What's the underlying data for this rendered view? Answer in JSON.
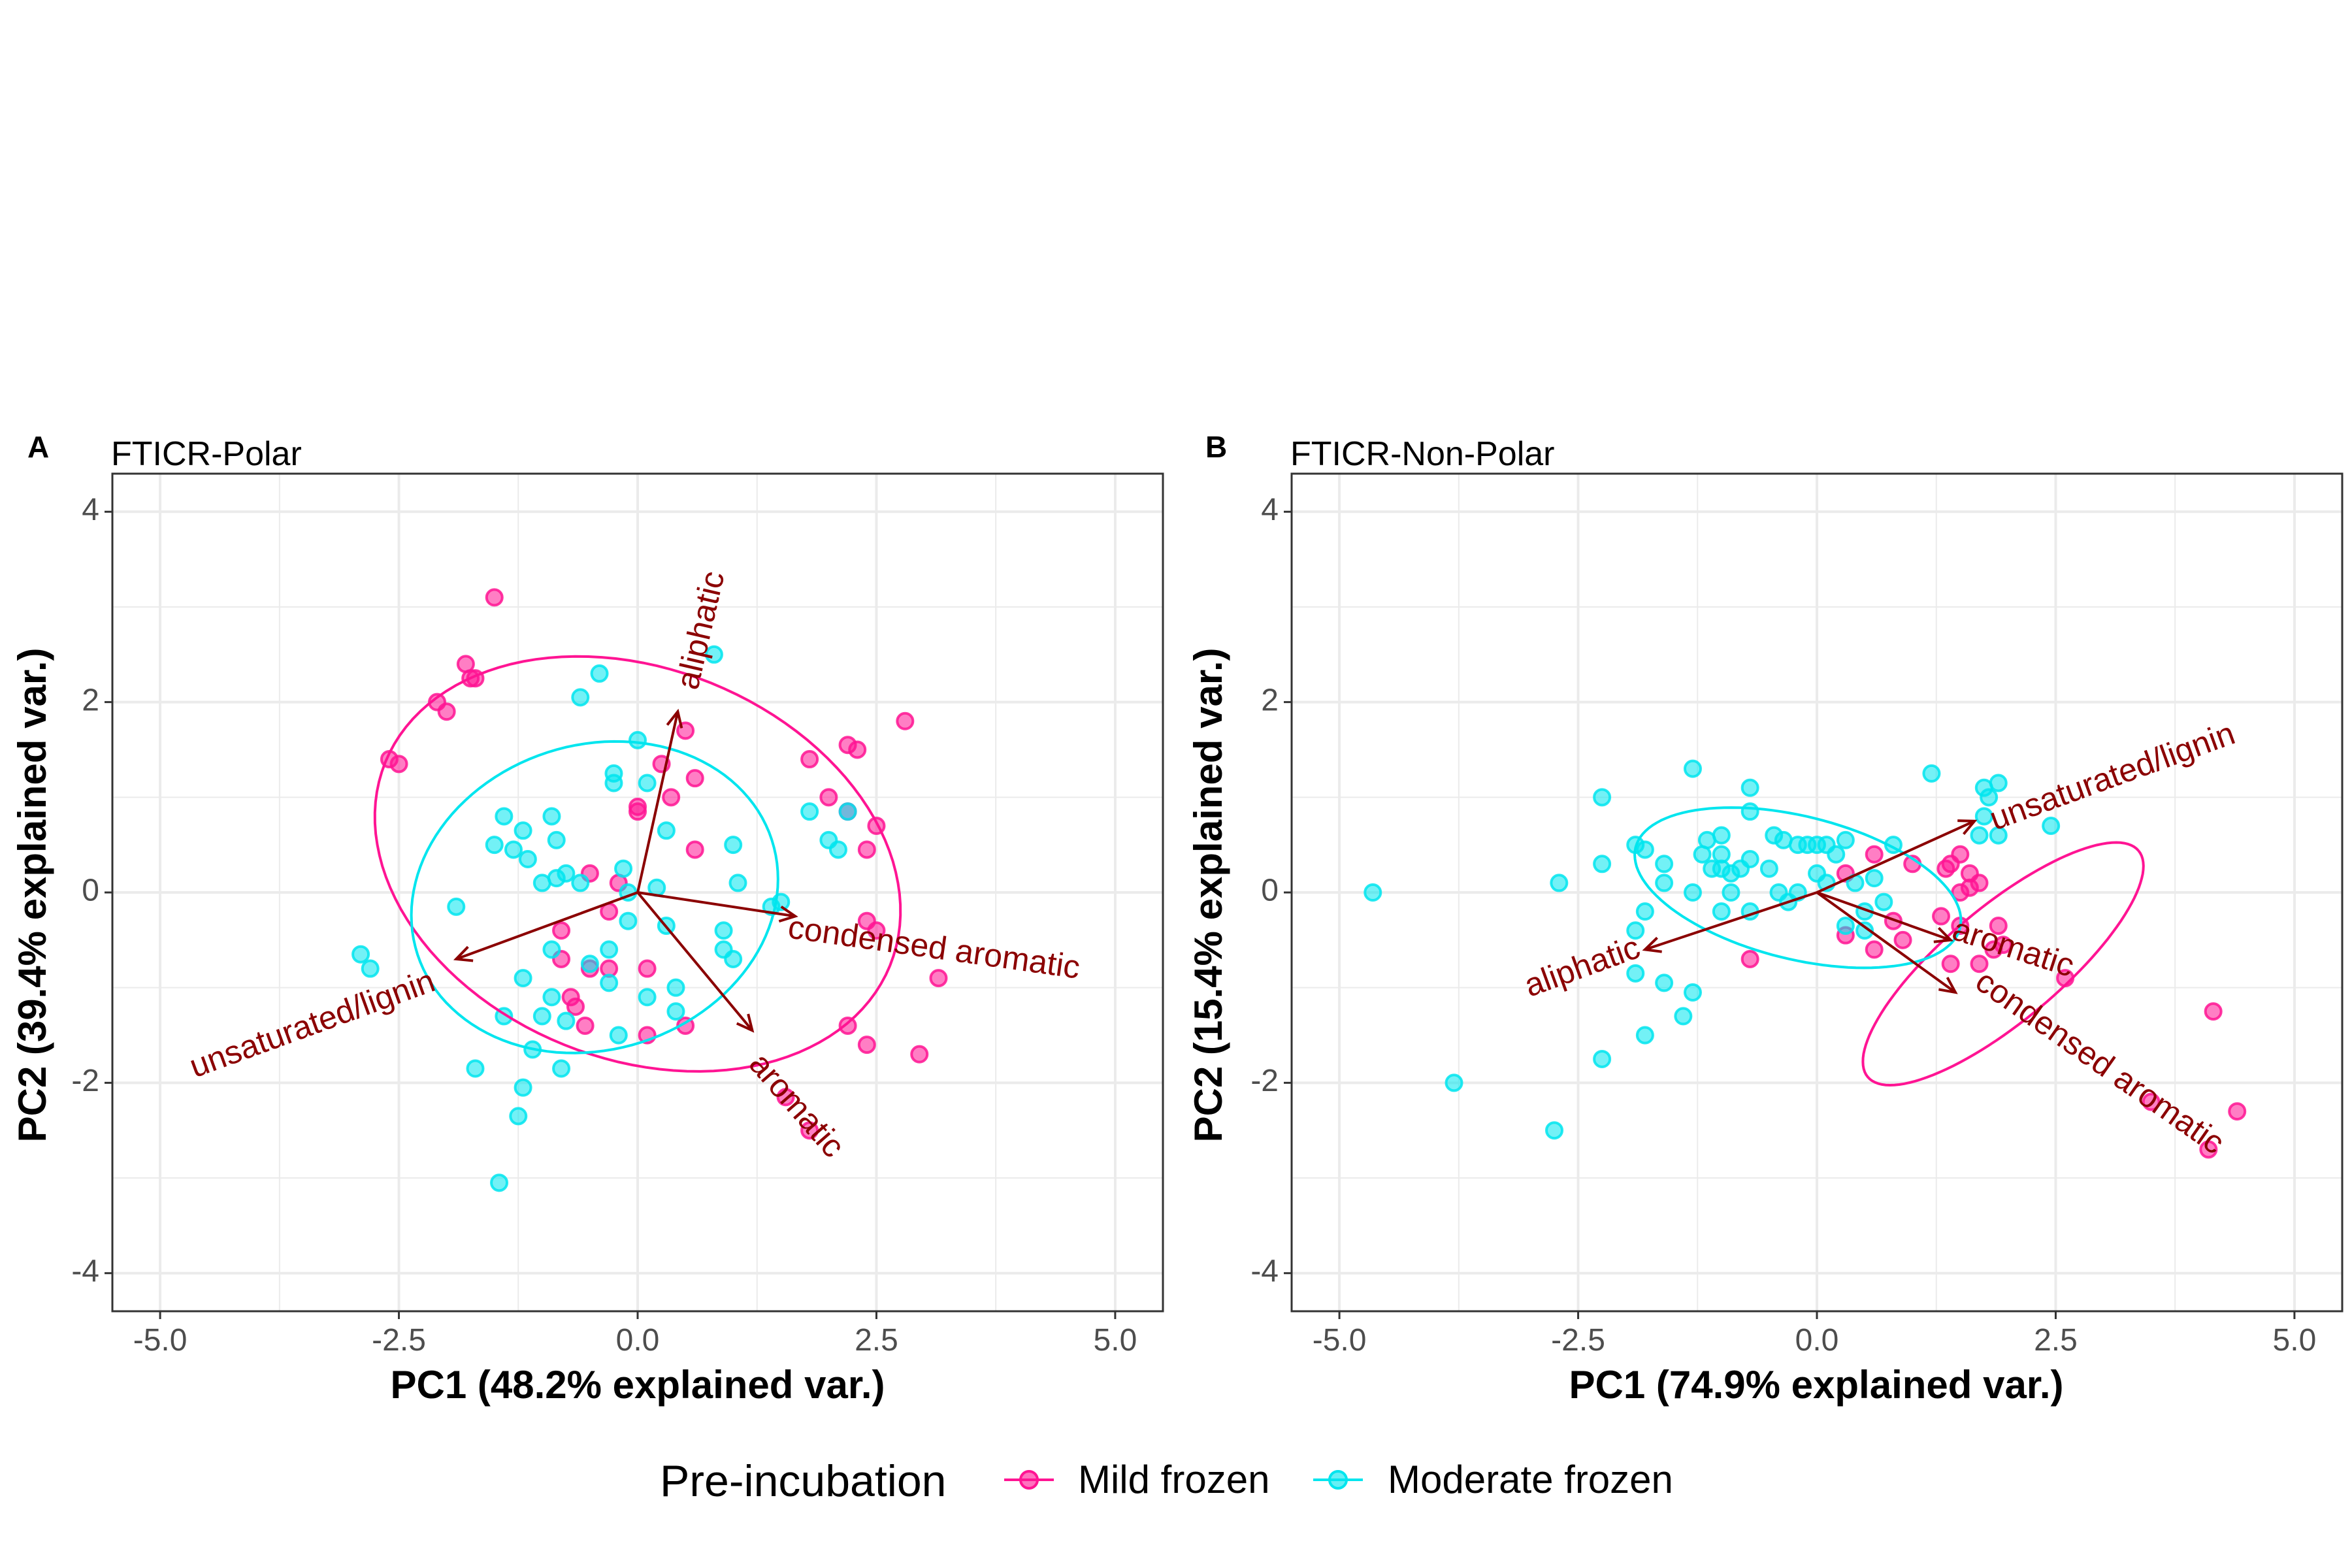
{
  "colors": {
    "mild": "#FF1493",
    "moderate": "#00E5EE",
    "arrow": "#8B0000",
    "grid": "#EBEBEB",
    "border": "#333333"
  },
  "legend": {
    "title": "Pre-incubation",
    "items": [
      {
        "label": "Mild frozen",
        "color": "#FF1493"
      },
      {
        "label": "Moderate frozen",
        "color": "#00E5EE"
      }
    ]
  },
  "chart_data": [
    {
      "type": "scatter",
      "panel": "A",
      "subtitle": "FTICR-Polar",
      "xlabel": "PC1 (48.2% explained var.)",
      "ylabel": "PC2 (39.4% explained var.)",
      "xlim": [
        -5.5,
        5.5
      ],
      "ylim": [
        -4.4,
        4.4
      ],
      "xticks": [
        -5.0,
        -2.5,
        0.0,
        2.5,
        5.0
      ],
      "xtick_labels": [
        "-5.0",
        "-2.5",
        "0.0",
        "2.5",
        "5.0"
      ],
      "yticks": [
        -4,
        -2,
        0,
        2,
        4
      ],
      "ytick_labels": [
        "-4",
        "-2",
        "0",
        "2",
        "4"
      ],
      "grid": true,
      "series": [
        {
          "name": "Mild frozen",
          "color": "#FF1493",
          "points": [
            [
              -1.5,
              3.1
            ],
            [
              -1.8,
              2.4
            ],
            [
              -1.75,
              2.25
            ],
            [
              -1.7,
              2.25
            ],
            [
              -2.1,
              2.0
            ],
            [
              -2.0,
              1.9
            ],
            [
              -2.6,
              1.4
            ],
            [
              -2.5,
              1.35
            ],
            [
              0.5,
              1.7
            ],
            [
              0.25,
              1.35
            ],
            [
              0.6,
              1.2
            ],
            [
              0.35,
              1.0
            ],
            [
              0.0,
              0.85
            ],
            [
              0.0,
              0.9
            ],
            [
              2.8,
              1.8
            ],
            [
              2.2,
              1.55
            ],
            [
              2.3,
              1.5
            ],
            [
              1.8,
              1.4
            ],
            [
              2.0,
              1.0
            ],
            [
              2.2,
              0.85
            ],
            [
              2.5,
              0.7
            ],
            [
              2.4,
              0.45
            ],
            [
              0.6,
              0.45
            ],
            [
              -0.5,
              0.2
            ],
            [
              -0.2,
              0.1
            ],
            [
              -0.3,
              -0.2
            ],
            [
              -0.8,
              -0.4
            ],
            [
              -0.8,
              -0.7
            ],
            [
              -0.5,
              -0.8
            ],
            [
              -0.3,
              -0.8
            ],
            [
              0.1,
              -0.8
            ],
            [
              -0.7,
              -1.1
            ],
            [
              -0.65,
              -1.2
            ],
            [
              -0.55,
              -1.4
            ],
            [
              0.1,
              -1.5
            ],
            [
              0.5,
              -1.4
            ],
            [
              2.4,
              -0.3
            ],
            [
              2.5,
              -0.4
            ],
            [
              3.15,
              -0.9
            ],
            [
              2.2,
              -1.4
            ],
            [
              2.4,
              -1.6
            ],
            [
              2.95,
              -1.7
            ],
            [
              1.55,
              -2.15
            ],
            [
              1.8,
              -2.5
            ]
          ],
          "ellipse": {
            "cx": 0.0,
            "cy": 0.3,
            "rx": 2.85,
            "ry": 2.05,
            "angle_deg": -22
          }
        },
        {
          "name": "Moderate frozen",
          "color": "#00E5EE",
          "points": [
            [
              -0.4,
              2.3
            ],
            [
              -0.6,
              2.05
            ],
            [
              0.8,
              2.5
            ],
            [
              -0.25,
              1.25
            ],
            [
              -0.25,
              1.15
            ],
            [
              0.0,
              1.6
            ],
            [
              0.1,
              1.15
            ],
            [
              -1.4,
              0.8
            ],
            [
              -1.2,
              0.65
            ],
            [
              -0.9,
              0.8
            ],
            [
              -1.3,
              0.45
            ],
            [
              -1.5,
              0.5
            ],
            [
              -1.15,
              0.35
            ],
            [
              -0.85,
              0.55
            ],
            [
              -0.75,
              0.2
            ],
            [
              -0.85,
              0.15
            ],
            [
              -0.6,
              0.1
            ],
            [
              -1.0,
              0.1
            ],
            [
              -0.15,
              0.25
            ],
            [
              -0.1,
              0.0
            ],
            [
              0.3,
              0.65
            ],
            [
              1.0,
              0.5
            ],
            [
              0.2,
              0.05
            ],
            [
              1.05,
              0.1
            ],
            [
              1.8,
              0.85
            ],
            [
              2.0,
              0.55
            ],
            [
              2.2,
              0.85
            ],
            [
              2.1,
              0.45
            ],
            [
              1.4,
              -0.15
            ],
            [
              1.5,
              -0.1
            ],
            [
              0.9,
              -0.4
            ],
            [
              -1.9,
              -0.15
            ],
            [
              -2.9,
              -0.65
            ],
            [
              -2.8,
              -0.8
            ],
            [
              -0.1,
              -0.3
            ],
            [
              0.3,
              -0.35
            ],
            [
              0.9,
              -0.6
            ],
            [
              1.0,
              -0.7
            ],
            [
              -0.3,
              -0.6
            ],
            [
              -0.5,
              -0.75
            ],
            [
              -0.9,
              -0.6
            ],
            [
              -0.9,
              -1.1
            ],
            [
              -1.2,
              -0.9
            ],
            [
              -1.0,
              -1.3
            ],
            [
              -0.75,
              -1.35
            ],
            [
              -1.4,
              -1.3
            ],
            [
              -0.3,
              -0.95
            ],
            [
              0.1,
              -1.1
            ],
            [
              0.4,
              -1.0
            ],
            [
              0.4,
              -1.25
            ],
            [
              -0.2,
              -1.5
            ],
            [
              -1.1,
              -1.65
            ],
            [
              -1.7,
              -1.85
            ],
            [
              -1.2,
              -2.05
            ],
            [
              -1.25,
              -2.35
            ],
            [
              -0.8,
              -1.85
            ],
            [
              -1.45,
              -3.05
            ]
          ],
          "ellipse": {
            "cx": -0.45,
            "cy": -0.05,
            "rx": 1.95,
            "ry": 1.6,
            "angle_deg": 18
          }
        }
      ],
      "loadings": [
        {
          "label": "aliphatic",
          "x": 0.42,
          "y": 1.9,
          "label_x": 0.68,
          "label_y": 2.75,
          "rotate_deg": -77
        },
        {
          "label": "condensed aromatic",
          "x": 1.65,
          "y": -0.25,
          "label_x": 3.1,
          "label_y": -0.6,
          "rotate_deg": 8
        },
        {
          "label": "aromatic",
          "x": 1.2,
          "y": -1.45,
          "label_x": 1.65,
          "label_y": -2.25,
          "rotate_deg": 49
        },
        {
          "label": "unsaturated/lignin",
          "x": -1.9,
          "y": -0.7,
          "label_x": -3.4,
          "label_y": -1.4,
          "rotate_deg": -20
        }
      ]
    },
    {
      "type": "scatter",
      "panel": "B",
      "subtitle": "FTICR-Non-Polar",
      "xlabel": "PC1 (74.9% explained var.)",
      "ylabel": "PC2 (15.4% explained var.)",
      "xlim": [
        -5.5,
        5.5
      ],
      "ylim": [
        -4.4,
        4.4
      ],
      "xticks": [
        -5.0,
        -2.5,
        0.0,
        2.5,
        5.0
      ],
      "xtick_labels": [
        "-5.0",
        "-2.5",
        "0.0",
        "2.5",
        "5.0"
      ],
      "yticks": [
        -4,
        -2,
        0,
        2,
        4
      ],
      "ytick_labels": [
        "-4",
        "-2",
        "0",
        "2",
        "4"
      ],
      "grid": true,
      "series": [
        {
          "name": "Mild frozen",
          "color": "#FF1493",
          "points": [
            [
              0.6,
              0.4
            ],
            [
              0.3,
              0.2
            ],
            [
              1.0,
              0.3
            ],
            [
              1.5,
              0.4
            ],
            [
              1.4,
              0.3
            ],
            [
              1.6,
              0.2
            ],
            [
              1.7,
              0.1
            ],
            [
              1.5,
              0.0
            ],
            [
              1.6,
              0.05
            ],
            [
              1.35,
              0.25
            ],
            [
              0.8,
              -0.3
            ],
            [
              1.3,
              -0.25
            ],
            [
              0.9,
              -0.5
            ],
            [
              1.5,
              -0.35
            ],
            [
              1.9,
              -0.35
            ],
            [
              1.95,
              -0.55
            ],
            [
              1.85,
              -0.6
            ],
            [
              1.4,
              -0.75
            ],
            [
              1.7,
              -0.75
            ],
            [
              0.6,
              -0.6
            ],
            [
              2.6,
              -0.9
            ],
            [
              3.5,
              -2.2
            ],
            [
              4.15,
              -1.25
            ],
            [
              4.4,
              -2.3
            ],
            [
              4.1,
              -2.7
            ],
            [
              -0.7,
              -0.7
            ],
            [
              0.3,
              -0.45
            ]
          ],
          "ellipse": {
            "cx": 1.95,
            "cy": -0.75,
            "rx": 1.85,
            "ry": 0.6,
            "angle_deg": 40
          }
        },
        {
          "name": "Moderate frozen",
          "color": "#00E5EE",
          "points": [
            [
              -4.65,
              0.0
            ],
            [
              -3.8,
              -2.0
            ],
            [
              -2.75,
              -2.5
            ],
            [
              -2.25,
              -1.75
            ],
            [
              -2.25,
              1.0
            ],
            [
              -2.25,
              0.3
            ],
            [
              -2.7,
              0.1
            ],
            [
              -1.6,
              0.3
            ],
            [
              -1.9,
              0.5
            ],
            [
              -1.8,
              0.45
            ],
            [
              -1.6,
              0.1
            ],
            [
              -1.9,
              -0.4
            ],
            [
              -1.8,
              -0.2
            ],
            [
              -1.9,
              -0.85
            ],
            [
              -1.6,
              -0.95
            ],
            [
              -1.8,
              -1.5
            ],
            [
              -1.4,
              -1.3
            ],
            [
              -1.3,
              -1.05
            ],
            [
              -1.3,
              1.3
            ],
            [
              -1.15,
              0.55
            ],
            [
              -1.0,
              0.6
            ],
            [
              -1.0,
              0.4
            ],
            [
              -1.2,
              0.4
            ],
            [
              -1.1,
              0.25
            ],
            [
              -1.0,
              0.25
            ],
            [
              -0.9,
              0.2
            ],
            [
              -0.8,
              0.25
            ],
            [
              -0.7,
              1.1
            ],
            [
              -0.7,
              0.85
            ],
            [
              -0.7,
              0.35
            ],
            [
              -0.5,
              0.25
            ],
            [
              -0.9,
              0.0
            ],
            [
              -1.0,
              -0.2
            ],
            [
              -1.3,
              0.0
            ],
            [
              -0.7,
              -0.2
            ],
            [
              -0.4,
              0.0
            ],
            [
              -0.2,
              0.0
            ],
            [
              -0.45,
              0.6
            ],
            [
              -0.35,
              0.55
            ],
            [
              -0.2,
              0.5
            ],
            [
              -0.1,
              0.5
            ],
            [
              0.0,
              0.5
            ],
            [
              0.1,
              0.5
            ],
            [
              0.3,
              0.55
            ],
            [
              0.2,
              0.4
            ],
            [
              0.0,
              0.2
            ],
            [
              0.1,
              0.1
            ],
            [
              0.4,
              0.1
            ],
            [
              0.6,
              0.15
            ],
            [
              0.8,
              0.5
            ],
            [
              1.2,
              1.25
            ],
            [
              0.7,
              -0.1
            ],
            [
              0.5,
              -0.2
            ],
            [
              1.75,
              1.1
            ],
            [
              1.9,
              1.15
            ],
            [
              1.8,
              1.0
            ],
            [
              1.75,
              0.8
            ],
            [
              1.9,
              0.6
            ],
            [
              1.7,
              0.6
            ],
            [
              2.45,
              0.7
            ],
            [
              0.3,
              -0.35
            ],
            [
              0.5,
              -0.4
            ],
            [
              -0.3,
              -0.1
            ]
          ],
          "ellipse": {
            "cx": -0.2,
            "cy": 0.05,
            "rx": 1.75,
            "ry": 0.75,
            "angle_deg": -14
          }
        }
      ],
      "loadings": [
        {
          "label": "unsaturated/lignin",
          "x": 1.65,
          "y": 0.75,
          "label_x": 3.1,
          "label_y": 1.2,
          "rotate_deg": -20
        },
        {
          "label": "aliphatic",
          "x": -1.8,
          "y": -0.6,
          "label_x": -2.45,
          "label_y": -0.8,
          "rotate_deg": -20
        },
        {
          "label": "aromatic",
          "x": 1.4,
          "y": -0.5,
          "label_x": 2.05,
          "label_y": -0.6,
          "rotate_deg": 18
        },
        {
          "label": "condensed aromatic",
          "x": 1.45,
          "y": -1.05,
          "label_x": 2.95,
          "label_y": -1.8,
          "rotate_deg": 35
        }
      ]
    }
  ]
}
